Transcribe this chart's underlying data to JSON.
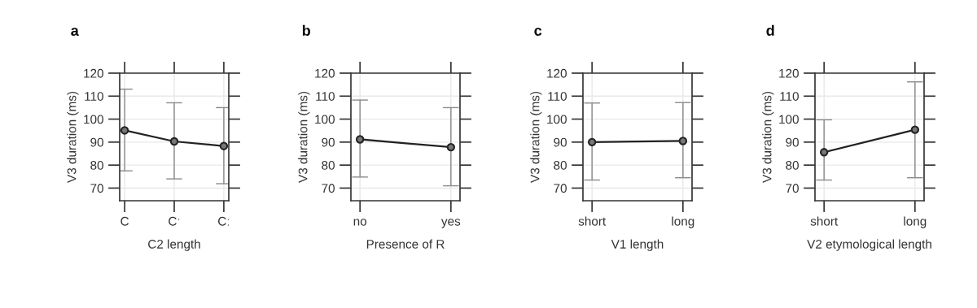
{
  "chart_data": [
    {
      "type": "line",
      "title": "a",
      "xlabel": "C2 length",
      "ylabel": "V3 duration (ms)",
      "categories": [
        "C",
        "Cˑ",
        "Cː"
      ],
      "ylim": [
        64.5,
        120
      ],
      "yticks": [
        70,
        80,
        90,
        100,
        110,
        120
      ],
      "grid": true,
      "marker": "circle",
      "line_style": "solid",
      "series": [
        {
          "color": "#222222",
          "values": [
            95.1,
            90.3,
            88.3
          ],
          "errors": [
            [
              77.5,
              113
            ],
            [
              74,
              107.1
            ],
            [
              71.9,
              105
            ]
          ]
        }
      ]
    },
    {
      "type": "line",
      "title": "b",
      "xlabel": "Presence of R",
      "ylabel": "V3 duration (ms)",
      "categories": [
        "no",
        "yes"
      ],
      "ylim": [
        64.5,
        120
      ],
      "yticks": [
        70,
        80,
        90,
        100,
        110,
        120
      ],
      "grid": true,
      "marker": "circle",
      "line_style": "solid",
      "series": [
        {
          "color": "#222222",
          "values": [
            91.2,
            87.8
          ],
          "errors": [
            [
              74.8,
              108.3
            ],
            [
              71,
              105
            ]
          ]
        }
      ]
    },
    {
      "type": "line",
      "title": "c",
      "xlabel": "V1 length",
      "ylabel": "V3 duration (ms)",
      "categories": [
        "short",
        "long"
      ],
      "ylim": [
        64.5,
        120
      ],
      "yticks": [
        70,
        80,
        90,
        100,
        110,
        120
      ],
      "grid": true,
      "marker": "circle",
      "line_style": "solid",
      "series": [
        {
          "color": "#222222",
          "values": [
            90,
            90.5
          ],
          "errors": [
            [
              73.5,
              107
            ],
            [
              74.5,
              107.2
            ]
          ]
        }
      ]
    },
    {
      "type": "line",
      "title": "d",
      "xlabel": "V2 etymological length",
      "ylabel": "V3 duration (ms)",
      "categories": [
        "short",
        "long"
      ],
      "ylim": [
        64.5,
        120
      ],
      "yticks": [
        70,
        80,
        90,
        100,
        110,
        120
      ],
      "grid": true,
      "marker": "circle",
      "line_style": "solid",
      "series": [
        {
          "color": "#222222",
          "values": [
            85.6,
            95.4
          ],
          "errors": [
            [
              73.5,
              99.7
            ],
            [
              74.5,
              116.2
            ]
          ]
        }
      ]
    }
  ]
}
